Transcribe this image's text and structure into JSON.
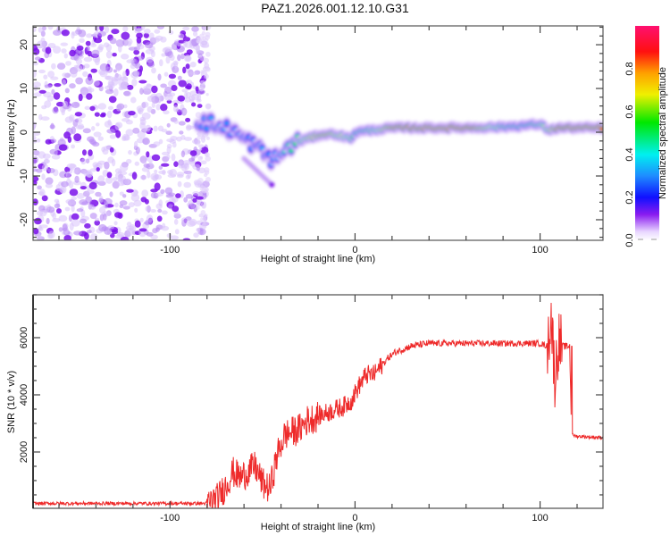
{
  "title": "PAZ1.2026.001.12.10.G31",
  "chart_data": [
    {
      "type": "heatmap",
      "name": "spectrogram",
      "xlabel": "Height of straight line (km)",
      "ylabel": "Frequency (Hz)",
      "xlim": [
        -174,
        134
      ],
      "ylim": [
        -24.7,
        24.3
      ],
      "xticks": [
        -100,
        0,
        100
      ],
      "xtick_labels": [
        "-100",
        "0",
        "100"
      ],
      "yticks": [
        -20,
        -10,
        0,
        10,
        20
      ],
      "ytick_labels": [
        "-20",
        "-10",
        "0",
        "10",
        "20"
      ],
      "ridge": {
        "x": [
          -85,
          -78,
          -72,
          -66,
          -62,
          -58,
          -54,
          -50,
          -46,
          -42,
          -38,
          -34,
          -30,
          -26,
          -22,
          -18,
          -14,
          -10,
          -6,
          -2,
          0,
          10,
          20,
          40,
          60,
          80,
          90,
          100,
          105,
          110,
          120,
          134
        ],
        "freq": [
          2.5,
          2,
          1,
          0.5,
          -1,
          -2,
          -3,
          -4.5,
          -6,
          -6,
          -4,
          -3,
          -2,
          -1.5,
          -1,
          -0.5,
          -0.5,
          -0.5,
          -1,
          -1.5,
          0,
          0.5,
          1,
          1,
          1,
          1.2,
          1.5,
          1.8,
          0.5,
          1,
          1,
          1
        ],
        "amplitude": [
          0.3,
          0.35,
          0.35,
          0.3,
          0.35,
          0.3,
          0.3,
          0.35,
          0.3,
          0.35,
          0.45,
          0.5,
          0.6,
          0.7,
          0.75,
          0.8,
          0.8,
          0.7,
          0.7,
          0.6,
          0.5,
          0.6,
          0.85,
          0.95,
          0.95,
          0.55,
          0.5,
          0.6,
          0.7,
          0.9,
          0.95,
          0.95
        ]
      },
      "colorbar": {
        "label": "Normalized spectral amplitude",
        "ticks": [
          0.0,
          0.2,
          0.4,
          0.6,
          0.8
        ],
        "tick_labels": [
          "0.0",
          "0.2",
          "0.4",
          "0.6",
          "0.8"
        ],
        "range": [
          0,
          1
        ]
      }
    },
    {
      "type": "line",
      "name": "snr",
      "xlabel": "Height of straight line (km)",
      "ylabel": "SNR (10 * v/v)",
      "xlim": [
        -174,
        134
      ],
      "ylim": [
        30,
        7500
      ],
      "xticks": [
        -100,
        0,
        100
      ],
      "xtick_labels": [
        "-100",
        "0",
        "100"
      ],
      "yticks": [
        2000,
        4000,
        6000
      ],
      "ytick_labels": [
        "2000",
        "4000",
        "6000"
      ],
      "color": "#ee2a2a",
      "series": [
        {
          "name": "SNR",
          "x": [
            -174,
            -80,
            -74,
            -70,
            -66,
            -62,
            -58,
            -54,
            -50,
            -46,
            -42,
            -38,
            -34,
            -30,
            -26,
            -22,
            -18,
            -14,
            -10,
            -6,
            -2,
            2,
            6,
            10,
            14,
            18,
            22,
            26,
            30,
            40,
            50,
            60,
            70,
            80,
            90,
            100,
            104,
            106,
            108,
            110,
            112,
            116,
            117,
            120,
            134
          ],
          "y": [
            200,
            200,
            400,
            800,
            1300,
            1100,
            1300,
            1500,
            900,
            700,
            1900,
            2600,
            2700,
            2800,
            3100,
            3200,
            3300,
            3400,
            3500,
            3600,
            3800,
            4300,
            4700,
            4700,
            5000,
            5300,
            5500,
            5600,
            5700,
            5800,
            5800,
            5800,
            5800,
            5800,
            5800,
            5800,
            5700,
            6800,
            4600,
            5900,
            5700,
            5700,
            2600,
            2550,
            2500
          ]
        }
      ]
    }
  ]
}
